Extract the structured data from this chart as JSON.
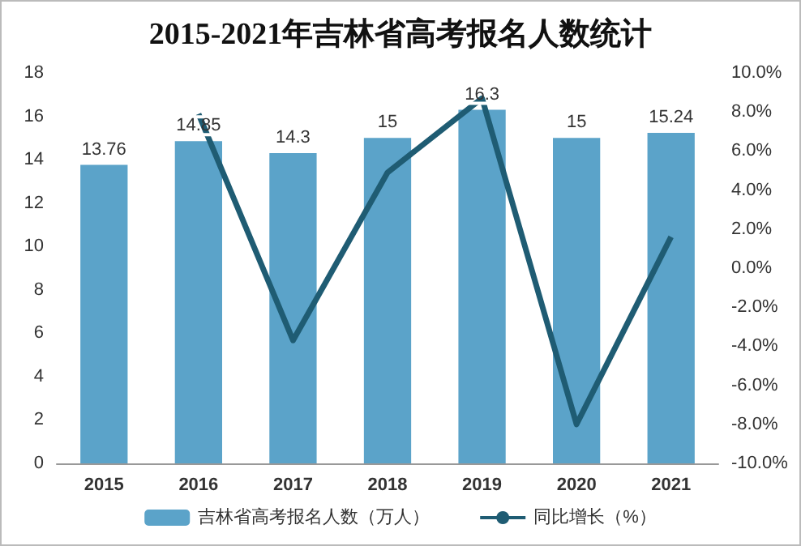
{
  "chart_data": {
    "type": "bar",
    "title": "2015-2021年吉林省高考报名人数统计",
    "categories": [
      "2015",
      "2016",
      "2017",
      "2018",
      "2019",
      "2020",
      "2021"
    ],
    "series": [
      {
        "name": "吉林省高考报名人数（万人）",
        "color": "#5ba3c9",
        "values": [
          13.76,
          14.85,
          14.3,
          15,
          16.3,
          15,
          15.24
        ],
        "value_labels": [
          "13.76",
          "14.85",
          "14.3",
          "15",
          "16.3",
          "15",
          "15.24"
        ]
      },
      {
        "name": "同比增长（%）",
        "type": "line",
        "axis": "y2",
        "color": "#1f5c73",
        "values": [
          null,
          7.9,
          -3.7,
          4.9,
          8.7,
          -8.0,
          1.6
        ]
      }
    ],
    "ylim": [
      0,
      18
    ],
    "yticks": [
      0,
      2,
      4,
      6,
      8,
      10,
      12,
      14,
      16,
      18
    ],
    "y2lim": [
      -10,
      10
    ],
    "y2ticks": [
      {
        "value": -10,
        "label": "-10.0%"
      },
      {
        "value": -8,
        "label": "-8.0%"
      },
      {
        "value": -6,
        "label": "-6.0%"
      },
      {
        "value": -4,
        "label": "-4.0%"
      },
      {
        "value": -2,
        "label": "-2.0%"
      },
      {
        "value": 0,
        "label": "0.0%"
      },
      {
        "value": 2,
        "label": "2.0%"
      },
      {
        "value": 4,
        "label": "4.0%"
      },
      {
        "value": 6,
        "label": "6.0%"
      },
      {
        "value": 8,
        "label": "8.0%"
      },
      {
        "value": 10,
        "label": "10.0%"
      }
    ],
    "legend": "bottom",
    "grid": false,
    "marker": "none"
  }
}
